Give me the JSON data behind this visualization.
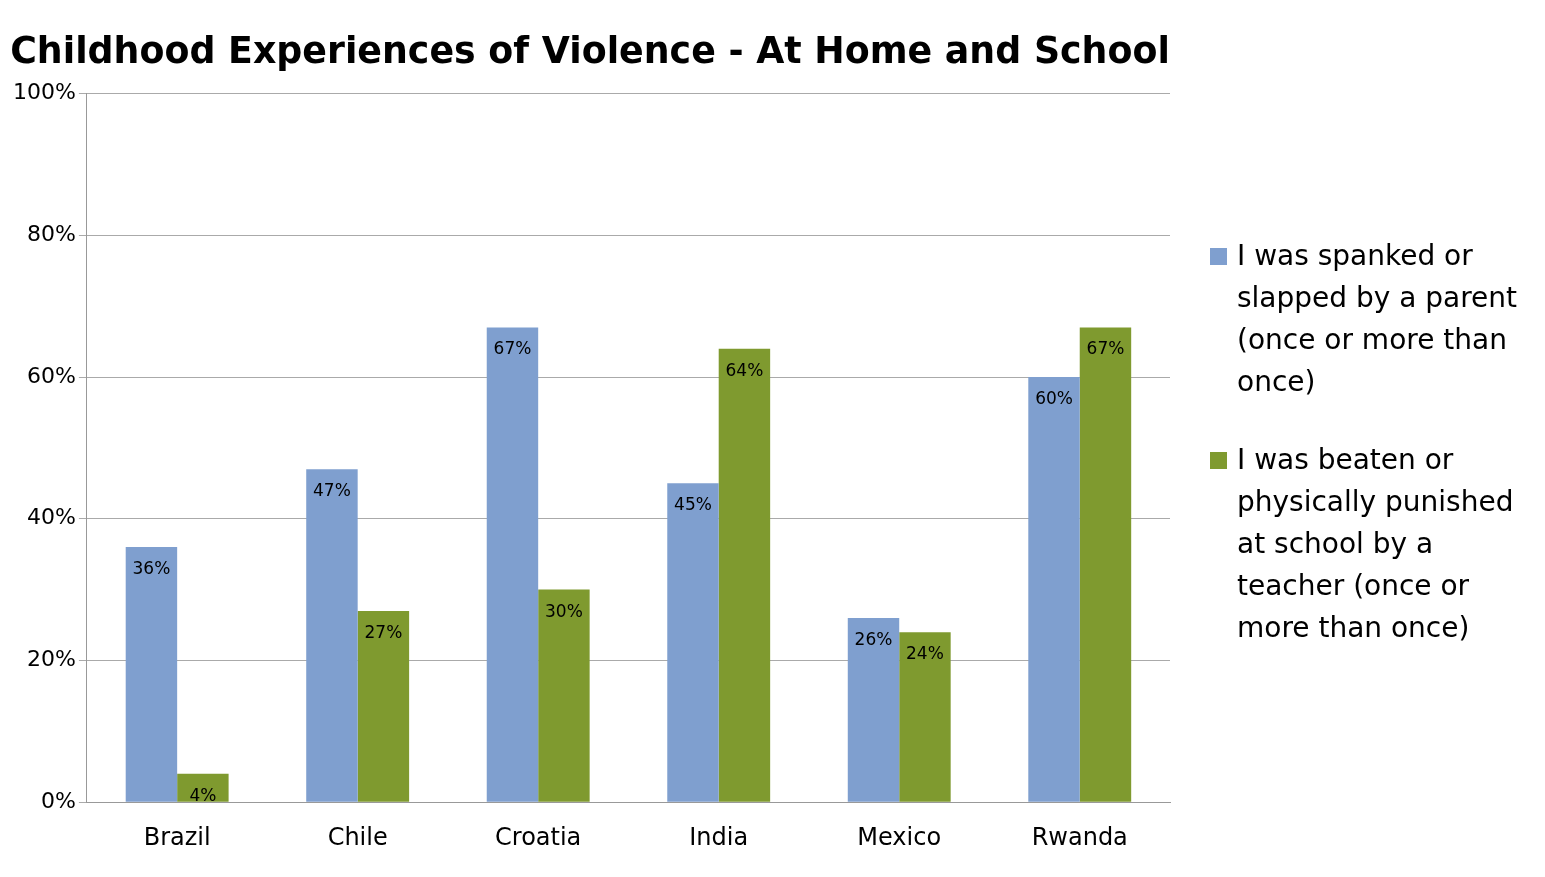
{
  "chart_data": {
    "type": "bar",
    "title": "Childhood Experiences of Violence - At Home and School",
    "categories": [
      "Brazil",
      "Chile",
      "Croatia",
      "India",
      "Mexico",
      "Rwanda"
    ],
    "series": [
      {
        "name": "I was spanked or slapped by a parent (once or more than once)",
        "color": "#7f9fcf",
        "values": [
          36,
          47,
          67,
          45,
          26,
          60
        ],
        "value_labels": [
          "36%",
          "47%",
          "67%",
          "45%",
          "26%",
          "60%"
        ]
      },
      {
        "name": "I was beaten or physically punished at school by a teacher (once or more than once)",
        "color": "#7f9a2f",
        "values": [
          4,
          27,
          30,
          64,
          24,
          67
        ],
        "value_labels": [
          "4%",
          "27%",
          "30%",
          "64%",
          "24%",
          "67%"
        ]
      }
    ],
    "ylim": [
      0,
      100
    ],
    "yticks": [
      {
        "value": 0,
        "label": "0%"
      },
      {
        "value": 20,
        "label": "20%"
      },
      {
        "value": 40,
        "label": "40%"
      },
      {
        "value": 60,
        "label": "60%"
      },
      {
        "value": 80,
        "label": "80%"
      },
      {
        "value": 100,
        "label": "100%"
      }
    ],
    "grid": "y",
    "legend": "right"
  }
}
